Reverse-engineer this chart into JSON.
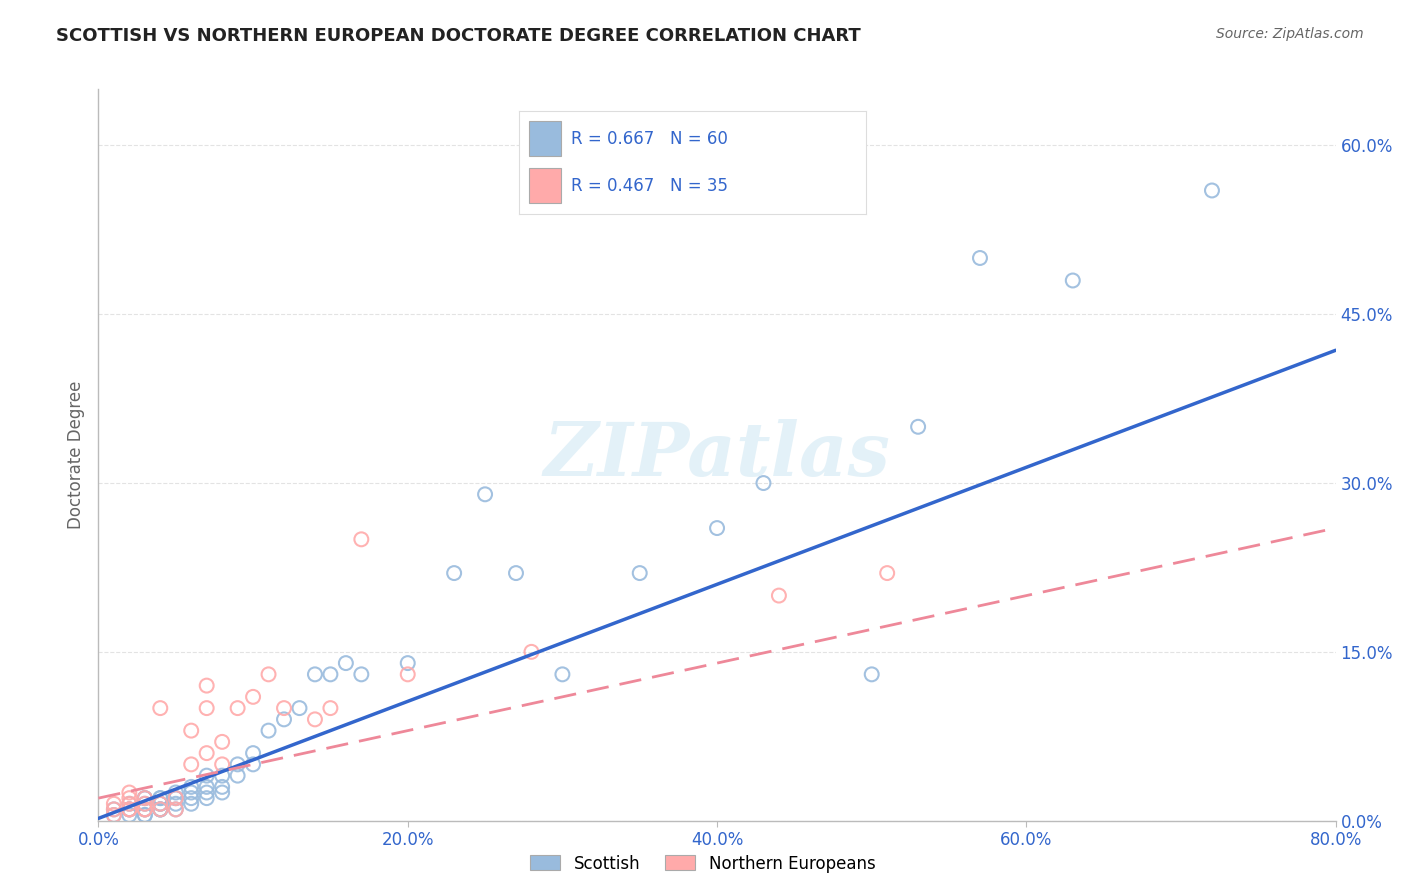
{
  "title": "SCOTTISH VS NORTHERN EUROPEAN DOCTORATE DEGREE CORRELATION CHART",
  "source": "Source: ZipAtlas.com",
  "ylabel": "Doctorate Degree",
  "watermark": "ZIPatlas",
  "xlim": [
    0.0,
    0.8
  ],
  "ylim": [
    0.0,
    0.65
  ],
  "xticks": [
    0.0,
    0.2,
    0.4,
    0.6,
    0.8
  ],
  "yticks": [
    0.0,
    0.15,
    0.3,
    0.45,
    0.6
  ],
  "ytick_labels_right": [
    "0.0%",
    "15.0%",
    "30.0%",
    "45.0%",
    "60.0%"
  ],
  "xtick_labels": [
    "0.0%",
    "20.0%",
    "40.0%",
    "60.0%",
    "80.0%"
  ],
  "scottish_color": "#99BBDD",
  "northern_color": "#FFAAAA",
  "scottish_line_color": "#3366CC",
  "northern_line_color": "#EE8899",
  "background_color": "#FFFFFF",
  "grid_color": "#DDDDDD",
  "scottish_x": [
    0.01,
    0.01,
    0.02,
    0.02,
    0.02,
    0.02,
    0.03,
    0.03,
    0.03,
    0.03,
    0.03,
    0.03,
    0.03,
    0.04,
    0.04,
    0.04,
    0.04,
    0.04,
    0.04,
    0.04,
    0.05,
    0.05,
    0.05,
    0.05,
    0.05,
    0.06,
    0.06,
    0.06,
    0.06,
    0.07,
    0.07,
    0.07,
    0.07,
    0.08,
    0.08,
    0.08,
    0.09,
    0.09,
    0.1,
    0.1,
    0.11,
    0.12,
    0.13,
    0.14,
    0.15,
    0.16,
    0.17,
    0.2,
    0.23,
    0.25,
    0.27,
    0.3,
    0.35,
    0.4,
    0.43,
    0.5,
    0.53,
    0.57,
    0.63,
    0.72
  ],
  "scottish_y": [
    0.005,
    0.01,
    0.005,
    0.01,
    0.015,
    0.01,
    0.005,
    0.01,
    0.015,
    0.02,
    0.01,
    0.02,
    0.005,
    0.01,
    0.015,
    0.02,
    0.01,
    0.02,
    0.015,
    0.01,
    0.02,
    0.015,
    0.01,
    0.025,
    0.02,
    0.025,
    0.03,
    0.02,
    0.015,
    0.03,
    0.04,
    0.025,
    0.02,
    0.04,
    0.03,
    0.025,
    0.05,
    0.04,
    0.06,
    0.05,
    0.08,
    0.09,
    0.1,
    0.13,
    0.13,
    0.14,
    0.13,
    0.14,
    0.22,
    0.29,
    0.22,
    0.13,
    0.22,
    0.26,
    0.3,
    0.13,
    0.35,
    0.5,
    0.48,
    0.56
  ],
  "northern_x": [
    0.01,
    0.01,
    0.01,
    0.02,
    0.02,
    0.02,
    0.02,
    0.02,
    0.03,
    0.03,
    0.03,
    0.03,
    0.04,
    0.04,
    0.04,
    0.05,
    0.05,
    0.06,
    0.06,
    0.07,
    0.07,
    0.07,
    0.08,
    0.08,
    0.09,
    0.1,
    0.11,
    0.12,
    0.14,
    0.15,
    0.17,
    0.2,
    0.28,
    0.44,
    0.51
  ],
  "northern_y": [
    0.005,
    0.01,
    0.015,
    0.01,
    0.015,
    0.02,
    0.025,
    0.01,
    0.01,
    0.015,
    0.02,
    0.01,
    0.01,
    0.015,
    0.1,
    0.02,
    0.01,
    0.05,
    0.08,
    0.06,
    0.1,
    0.12,
    0.07,
    0.05,
    0.1,
    0.11,
    0.13,
    0.1,
    0.09,
    0.1,
    0.25,
    0.13,
    0.15,
    0.2,
    0.22
  ],
  "scottish_line_intercept": 0.002,
  "scottish_line_slope": 0.52,
  "northern_line_intercept": 0.02,
  "northern_line_slope": 0.3
}
